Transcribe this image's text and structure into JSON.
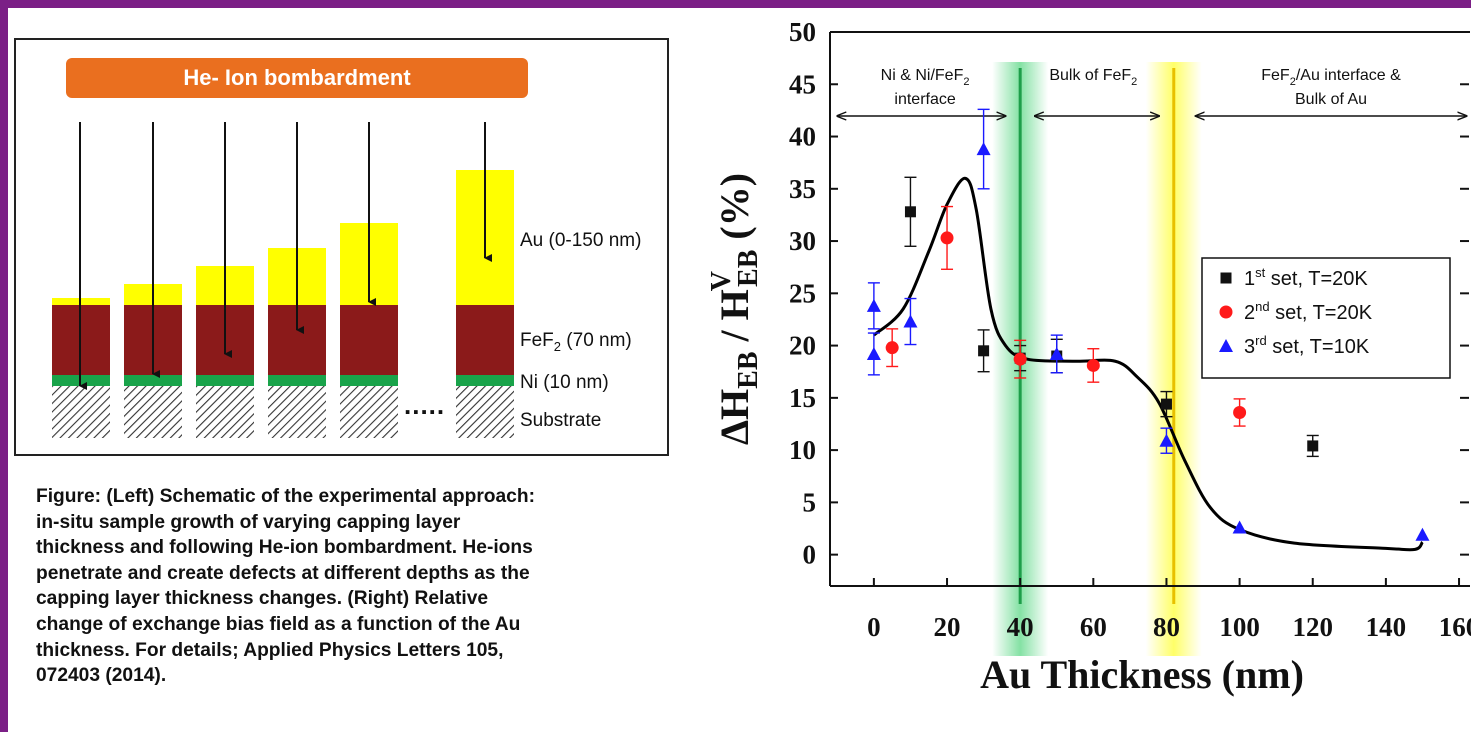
{
  "schematic": {
    "banner": "He- Ion bombardment",
    "labels": {
      "au": "Au (0-150 nm)",
      "fef2_pre": "FeF",
      "fef2_sub": "2",
      "fef2_post": " (70 nm)",
      "ni": "Ni (10 nm)",
      "substrate": "Substrate"
    },
    "ellipsis": ".....",
    "colors": {
      "banner": "#ea6f1f",
      "au": "#ffff00",
      "fef2": "#8b1a1a",
      "ni": "#19a34a"
    }
  },
  "caption": "Figure: (Left) Schematic of the experimental approach:\nin-situ sample growth of varying capping layer\nthickness and following He-ion bombardment. He-ions\npenetrate and create defects at different depths as the\ncapping layer thickness changes. (Right) Relative\nchange of exchange bias field as a function of the Au\nthickness. For details; Applied Physics Letters 105,\n072403 (2014).",
  "chart_data": {
    "type": "scatter",
    "xlabel": "Au Thickness (nm)",
    "ylabel": "ΔH_EB / H^V_EB (%)",
    "xlim": [
      -12,
      163
    ],
    "ylim": [
      -3,
      50
    ],
    "x_ticks": [
      0,
      20,
      40,
      60,
      80,
      100,
      120,
      140,
      160
    ],
    "y_ticks": [
      0,
      5,
      10,
      15,
      20,
      25,
      30,
      35,
      40,
      45,
      50
    ],
    "series": [
      {
        "name": "1st set, T=20K",
        "marker": "square",
        "color": "#111111",
        "points": [
          {
            "x": 10,
            "y": 32.8,
            "err": 3.3
          },
          {
            "x": 30,
            "y": 19.5,
            "err": 2.0
          },
          {
            "x": 40,
            "y": 18.8,
            "err": 1.2
          },
          {
            "x": 50,
            "y": 19.0,
            "err": 1.6
          },
          {
            "x": 80,
            "y": 14.4,
            "err": 1.2
          },
          {
            "x": 120,
            "y": 10.4,
            "err": 1.0
          }
        ]
      },
      {
        "name": "2nd set, T=20K",
        "marker": "circle",
        "color": "#ff1a1a",
        "points": [
          {
            "x": 5,
            "y": 19.8,
            "err": 1.8
          },
          {
            "x": 20,
            "y": 30.3,
            "err": 3.0
          },
          {
            "x": 40,
            "y": 18.7,
            "err": 1.8
          },
          {
            "x": 60,
            "y": 18.1,
            "err": 1.6
          },
          {
            "x": 100,
            "y": 13.6,
            "err": 1.3
          }
        ]
      },
      {
        "name": "3rd set, T=10K",
        "marker": "triangle",
        "color": "#1a1aff",
        "points": [
          {
            "x": 0,
            "y": 23.8,
            "err": 2.2
          },
          {
            "x": 0,
            "y": 19.2,
            "err": 2.0
          },
          {
            "x": 10,
            "y": 22.3,
            "err": 2.2
          },
          {
            "x": 30,
            "y": 38.8,
            "err": 3.8
          },
          {
            "x": 50,
            "y": 19.2,
            "err": 1.8
          },
          {
            "x": 80,
            "y": 10.9,
            "err": 1.2
          },
          {
            "x": 100,
            "y": 2.6,
            "err": 0
          },
          {
            "x": 150,
            "y": 1.9,
            "err": 0
          }
        ]
      }
    ],
    "fit_curve": [
      [
        0,
        21
      ],
      [
        8,
        23.5
      ],
      [
        15,
        29
      ],
      [
        20,
        33.5
      ],
      [
        25,
        36
      ],
      [
        28,
        33
      ],
      [
        32,
        23.5
      ],
      [
        36,
        20
      ],
      [
        42,
        18.7
      ],
      [
        55,
        18.5
      ],
      [
        66,
        18.5
      ],
      [
        72,
        17
      ],
      [
        78,
        14.5
      ],
      [
        85,
        9
      ],
      [
        92,
        4.5
      ],
      [
        100,
        2.4
      ],
      [
        115,
        1.1
      ],
      [
        140,
        0.6
      ],
      [
        148,
        0.5
      ],
      [
        150,
        1.2
      ]
    ],
    "legend": [
      {
        "pre": "1",
        "sup": "st",
        "post": " set, T=20K"
      },
      {
        "pre": "2",
        "sup": "nd",
        "post": " set, T=20K"
      },
      {
        "pre": "3",
        "sup": "rd",
        "post": " set, T=10K"
      }
    ],
    "legend_position": "right",
    "vertical_lines": [
      {
        "x": 40,
        "color": "#1e9e4a",
        "glow": "#6fdc94"
      },
      {
        "x": 82,
        "color": "#e8c000",
        "glow": "#ffff4d"
      }
    ],
    "regions": [
      {
        "lines": [
          "Ni & Ni/FeF|2",
          "interface"
        ],
        "x_center": 14,
        "arrow_from": -10,
        "arrow_to": 36
      },
      {
        "lines": [
          "Bulk of FeF|2"
        ],
        "x_center": 60,
        "arrow_from": 44,
        "arrow_to": 78
      },
      {
        "lines": [
          "FeF|2|/Au interface &",
          "Bulk of Au"
        ],
        "x_center": 125,
        "arrow_from": 88,
        "arrow_to": 162
      }
    ]
  }
}
